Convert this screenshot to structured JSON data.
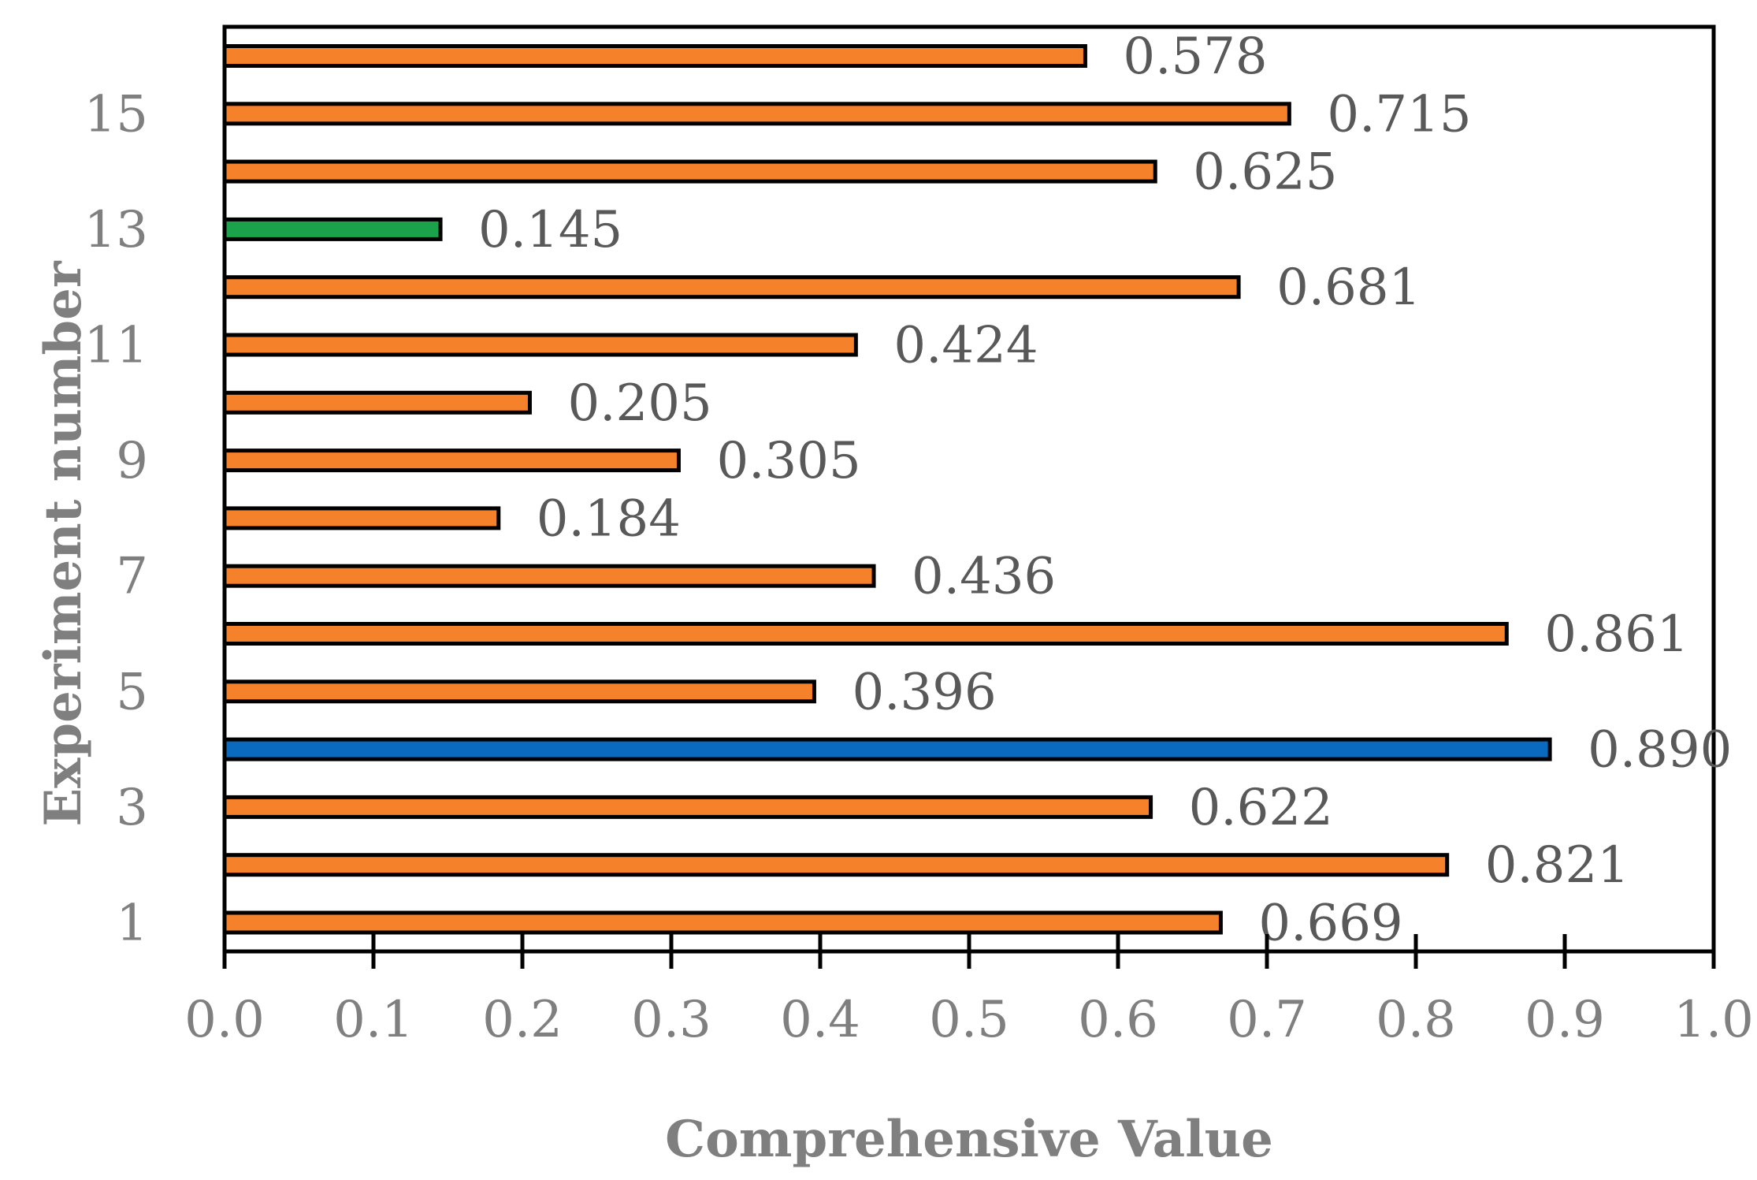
{
  "chart_data": {
    "type": "bar",
    "orientation": "horizontal",
    "xlabel": "Comprehensive Value",
    "ylabel": "Experiment number",
    "xlim": [
      0,
      1.0
    ],
    "x_ticks": [
      "0.0",
      "0.1",
      "0.2",
      "0.3",
      "0.4",
      "0.5",
      "0.6",
      "0.7",
      "0.8",
      "0.9",
      "1.0"
    ],
    "y_tick_labels": [
      "1",
      "3",
      "5",
      "7",
      "9",
      "11",
      "13",
      "15"
    ],
    "categories": [
      1,
      2,
      3,
      4,
      5,
      6,
      7,
      8,
      9,
      10,
      11,
      12,
      13,
      14,
      15,
      16
    ],
    "values": [
      0.669,
      0.821,
      0.622,
      0.89,
      0.396,
      0.861,
      0.436,
      0.184,
      0.305,
      0.205,
      0.424,
      0.681,
      0.145,
      0.625,
      0.715,
      0.578
    ],
    "value_labels": [
      "0.669",
      "0.821",
      "0.622",
      "0.890",
      "0.396",
      "0.861",
      "0.436",
      "0.184",
      "0.305",
      "0.205",
      "0.424",
      "0.681",
      "0.145",
      "0.625",
      "0.715",
      "0.578"
    ],
    "bar_colors": [
      "#f5812a",
      "#f5812a",
      "#f5812a",
      "#0a6abf",
      "#f5812a",
      "#f5812a",
      "#f5812a",
      "#f5812a",
      "#f5812a",
      "#f5812a",
      "#f5812a",
      "#f5812a",
      "#1aa34a",
      "#f5812a",
      "#f5812a",
      "#f5812a"
    ],
    "legend": "none",
    "grid": false
  }
}
